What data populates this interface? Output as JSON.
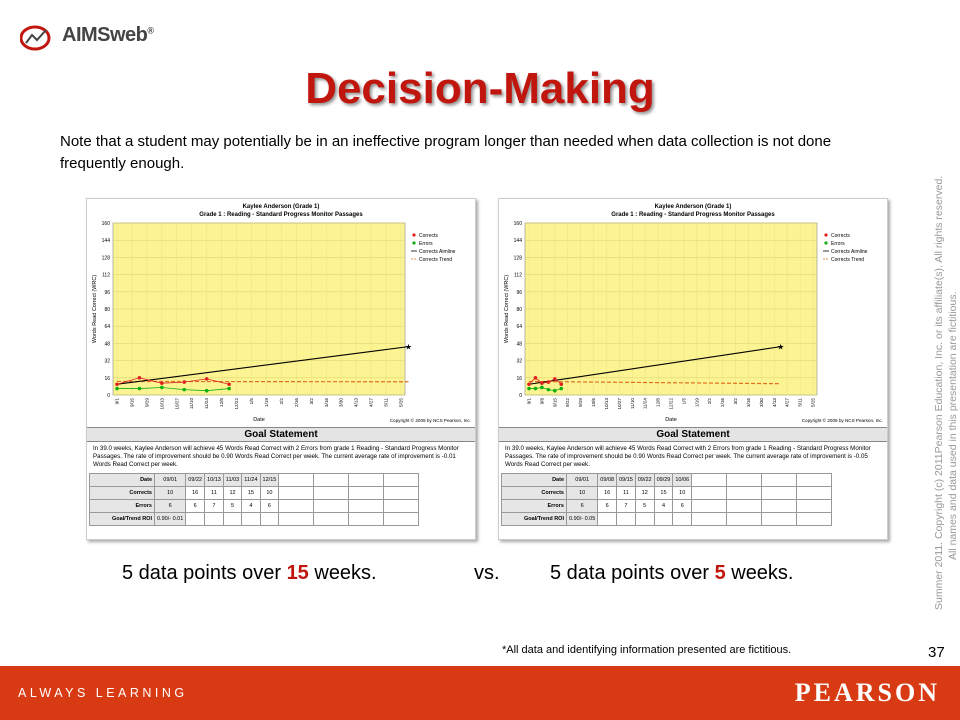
{
  "logo": {
    "text": "AIMSweb",
    "mark": "®"
  },
  "title": "Decision-Making",
  "note": "Note that a student may potentially be in an ineffective program longer than needed when data collection is not done frequently enough.",
  "copyright": {
    "line1": "Summer 2011.  Copyright (c) 2011Pearson Education, Inc. or its affiliate(s).  All rights reserved.",
    "line2": "All names and data used in this presentation are fictitious."
  },
  "charts": [
    {
      "chart_title": "Kaylee Anderson (Grade 1)",
      "chart_subtitle": "Grade 1 : Reading - Standard Progress Monitor Passages",
      "ylabel": "Words Read Correct (WRC)",
      "xlabel": "Date",
      "copyright": "Copyright © 2009 by NCS Pearson, Inc.",
      "legend": [
        "Corrects",
        "Errors",
        "Corrects Aimline",
        "Corrects Trend"
      ],
      "goal_title": "Goal Statement",
      "goal_text": "In 39.0 weeks, Kaylee Anderson will achieve 45 Words Read Correct with 2 Errors from grade 1 Reading - Standard Progress Monitor Passages. The rate of improvement should be 0.90 Words Read Correct per week. The current average rate of improvement is -0.01 Words Read Correct per week.",
      "table": {
        "headers": [
          "Date",
          "Corrects",
          "Errors",
          "Goal/Trend ROI"
        ],
        "dates": [
          "09/01",
          "09/22",
          "10/13",
          "11/03",
          "11/24",
          "12/15"
        ],
        "corrects": [
          "10",
          "16",
          "11",
          "12",
          "15",
          "10"
        ],
        "errors": [
          "6",
          "6",
          "7",
          "5",
          "4",
          "6"
        ],
        "roi": "0.90/- 0.01"
      }
    },
    {
      "chart_title": "Kaylee Anderson (Grade 1)",
      "chart_subtitle": "Grade 1 : Reading - Standard Progress Monitor Passages",
      "ylabel": "Words Read Correct (WRC)",
      "xlabel": "Date",
      "copyright": "Copyright © 2009 by NCS Pearson, Inc.",
      "legend": [
        "Corrects",
        "Errors",
        "Corrects Aimline",
        "Corrects Trend"
      ],
      "goal_title": "Goal Statement",
      "goal_text": "In 39.0 weeks, Kaylee Anderson will achieve 45 Words Read Correct with 2 Errors from grade 1 Reading - Standard Progress Monitor Passages. The rate of improvement should be 0.90 Words Read Correct per week. The current average rate of improvement is -0.05 Words Read Correct per week.",
      "table": {
        "headers": [
          "Date",
          "Corrects",
          "Errors",
          "Goal/Trend ROI"
        ],
        "dates": [
          "09/01",
          "09/08",
          "09/15",
          "09/22",
          "09/29",
          "10/06"
        ],
        "corrects": [
          "10",
          "16",
          "11",
          "12",
          "15",
          "10"
        ],
        "errors": [
          "6",
          "6",
          "7",
          "5",
          "4",
          "6"
        ],
        "roi": "0.90/- 0.05"
      }
    }
  ],
  "chart_data": [
    {
      "type": "line",
      "title": "Kaylee Anderson (Grade 1)",
      "subtitle": "Grade 1 : Reading - Standard Progress Monitor Passages",
      "xlabel": "Date",
      "ylabel": "Words Read Correct (WRC)",
      "ylim": [
        0,
        160
      ],
      "yticks": [
        0,
        16,
        32,
        48,
        64,
        80,
        96,
        112,
        128,
        144,
        160
      ],
      "categories": [
        "9/1",
        "9/15",
        "9/29",
        "10/13",
        "10/27",
        "11/10",
        "11/24",
        "12/8",
        "12/22",
        "1/5",
        "1/19",
        "2/2",
        "2/16",
        "3/2",
        "3/16",
        "3/30",
        "4/13",
        "4/27",
        "5/11",
        "5/25"
      ],
      "legend": "top-right",
      "series": [
        {
          "name": "Corrects",
          "color": "#e02020",
          "x": [
            0,
            1.5,
            3,
            4.5,
            6,
            7.5
          ],
          "values": [
            10,
            16,
            11,
            12,
            15,
            10
          ]
        },
        {
          "name": "Errors",
          "color": "#10b010",
          "x": [
            0,
            1.5,
            3,
            4.5,
            6,
            7.5
          ],
          "values": [
            6,
            6,
            7,
            5,
            4,
            6
          ]
        },
        {
          "name": "Corrects Aimline",
          "color": "#000000",
          "x": [
            0,
            19.5
          ],
          "values": [
            10,
            45
          ]
        },
        {
          "name": "Corrects Trend",
          "color": "#e07020",
          "x": [
            0,
            19.5
          ],
          "values": [
            12.6,
            12.3
          ]
        }
      ]
    },
    {
      "type": "line",
      "title": "Kaylee Anderson (Grade 1)",
      "subtitle": "Grade 1 : Reading - Standard Progress Monitor Passages",
      "xlabel": "Date",
      "ylabel": "Words Read Correct (WRC)",
      "ylim": [
        0,
        160
      ],
      "yticks": [
        0,
        16,
        32,
        48,
        64,
        80,
        96,
        112,
        128,
        144,
        160
      ],
      "categories": [
        "9/1",
        "9/8",
        "9/15",
        "9/22",
        "9/29",
        "10/6",
        "10/13",
        "10/27",
        "11/10",
        "11/24",
        "12/8",
        "12/22",
        "1/5",
        "1/19",
        "2/2",
        "2/16",
        "3/2",
        "3/16",
        "3/30",
        "4/13",
        "4/27",
        "5/11",
        "5/25"
      ],
      "legend": "top-right",
      "series": [
        {
          "name": "Corrects",
          "color": "#e02020",
          "x": [
            0,
            0.5,
            1,
            1.5,
            2,
            2.5
          ],
          "values": [
            10,
            16,
            11,
            12,
            15,
            10
          ]
        },
        {
          "name": "Errors",
          "color": "#10b010",
          "x": [
            0,
            0.5,
            1,
            1.5,
            2,
            2.5
          ],
          "values": [
            6,
            6,
            7,
            5,
            4,
            6
          ]
        },
        {
          "name": "Corrects Aimline",
          "color": "#000000",
          "x": [
            0,
            19.5
          ],
          "values": [
            10,
            45
          ]
        },
        {
          "name": "Corrects Trend",
          "color": "#e07020",
          "x": [
            0,
            19.5
          ],
          "values": [
            12.6,
            10.5
          ]
        }
      ]
    }
  ],
  "comparison": {
    "left_prefix": "5 data points over ",
    "left_num": "15",
    "left_suffix": " weeks.",
    "vs": "vs.",
    "right_prefix": "5 data points over ",
    "right_num": "5",
    "right_suffix": " weeks."
  },
  "footnote": "*All data and identifying information presented are fictitious.",
  "slide_number": "37",
  "footer": {
    "left": "ALWAYS LEARNING",
    "right": "PEARSON",
    "color": "#d83b14"
  }
}
